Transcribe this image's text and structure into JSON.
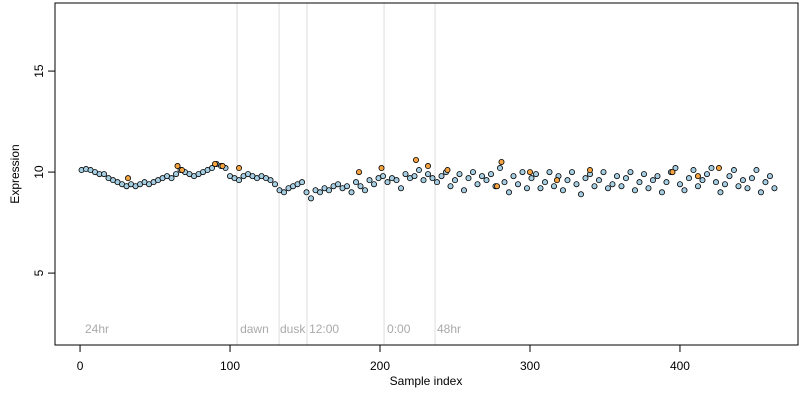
{
  "chart_data": {
    "type": "scatter",
    "xlabel": "Sample index",
    "ylabel": "Expression",
    "xlim": [
      -16.7,
      478.7
    ],
    "ylim": [
      1.44,
      18.37
    ],
    "xticks": [
      0,
      100,
      200,
      300,
      400
    ],
    "yticks": [
      5,
      10,
      15
    ],
    "vlines": [
      104.7,
      132.7,
      151.3,
      202.7,
      236.7
    ],
    "annotations": [
      {
        "text": "24hr",
        "x": 3.3
      },
      {
        "text": "dawn",
        "x": 106.7
      },
      {
        "text": "dusk",
        "x": 133.3
      },
      {
        "text": "12:00",
        "x": 152.7
      },
      {
        "text": "0:00",
        "x": 204.7
      },
      {
        "text": "48hr",
        "x": 238
      }
    ],
    "annotation_y": 2.2,
    "series": [
      {
        "color": "#a6cee3",
        "x": [
          1,
          4,
          7,
          10,
          13,
          16,
          19,
          22,
          25,
          28,
          31,
          34,
          37,
          40,
          43,
          46,
          49,
          52,
          55,
          58,
          61,
          64,
          67,
          70,
          73,
          76,
          79,
          82,
          85,
          88,
          91,
          94,
          97,
          100,
          103,
          106,
          109,
          112,
          115,
          118,
          121,
          124,
          127,
          130,
          133,
          136,
          139,
          142,
          145,
          148,
          151,
          154,
          157,
          160,
          163,
          166,
          169,
          172,
          175,
          178,
          181,
          184,
          187,
          190,
          193,
          196,
          199,
          202,
          205,
          208,
          211,
          214,
          217,
          220,
          223,
          226,
          229,
          232,
          235,
          238,
          241,
          244,
          247,
          250,
          253,
          256,
          259,
          262,
          265,
          268,
          271,
          274,
          277,
          280,
          283,
          286,
          289,
          292,
          295,
          298,
          301,
          304,
          307,
          310,
          313,
          316,
          319,
          322,
          325,
          328,
          331,
          334,
          337,
          340,
          343,
          346,
          349,
          352,
          355,
          358,
          361,
          364,
          367,
          370,
          373,
          376,
          379,
          382,
          385,
          388,
          391,
          394,
          397,
          400,
          403,
          406,
          409,
          412,
          415,
          418,
          421,
          424,
          427,
          430,
          433,
          436,
          439,
          442,
          445,
          448,
          451,
          454,
          457,
          460,
          463
        ],
        "values": [
          10.1,
          10.15,
          10.1,
          10.0,
          9.9,
          9.9,
          9.7,
          9.6,
          9.5,
          9.4,
          9.3,
          9.4,
          9.3,
          9.4,
          9.5,
          9.4,
          9.5,
          9.6,
          9.7,
          9.8,
          9.7,
          9.9,
          10.1,
          10.0,
          9.9,
          9.8,
          9.9,
          10.0,
          10.1,
          10.2,
          10.4,
          10.3,
          10.2,
          9.8,
          9.7,
          9.6,
          9.8,
          9.9,
          9.8,
          9.7,
          9.8,
          9.7,
          9.6,
          9.4,
          9.1,
          9.0,
          9.2,
          9.3,
          9.4,
          9.5,
          9.0,
          8.7,
          9.1,
          9.0,
          9.2,
          9.1,
          9.3,
          9.4,
          9.2,
          9.3,
          9.0,
          9.5,
          9.3,
          9.1,
          9.6,
          9.4,
          9.7,
          9.8,
          9.5,
          9.7,
          9.6,
          9.2,
          9.9,
          9.7,
          9.8,
          10.1,
          9.6,
          9.9,
          9.7,
          9.5,
          9.8,
          10.0,
          9.3,
          9.6,
          9.9,
          9.1,
          9.7,
          10.0,
          9.4,
          9.8,
          9.6,
          9.9,
          9.3,
          10.2,
          9.5,
          9.0,
          9.8,
          9.4,
          10.0,
          9.2,
          9.7,
          9.9,
          9.2,
          9.5,
          10.0,
          9.3,
          9.8,
          9.1,
          9.6,
          10.0,
          9.4,
          8.9,
          9.7,
          9.9,
          9.3,
          9.6,
          10.0,
          9.2,
          9.4,
          9.8,
          9.3,
          9.7,
          10.0,
          9.1,
          9.5,
          9.9,
          9.2,
          9.6,
          9.8,
          9.0,
          9.5,
          10.0,
          10.2,
          9.4,
          9.1,
          9.7,
          10.1,
          9.3,
          9.6,
          9.9,
          10.2,
          9.5,
          9.0,
          9.4,
          9.8,
          10.1,
          9.3,
          9.6,
          9.2,
          9.7,
          10.1,
          9.0,
          9.5,
          9.8,
          9.2
        ]
      },
      {
        "color": "#f5a340",
        "x": [
          32,
          65,
          68,
          90,
          95,
          106,
          186,
          201,
          224,
          232,
          245,
          278,
          281,
          300,
          318,
          340,
          395,
          412,
          426
        ],
        "values": [
          9.7,
          10.3,
          10.1,
          10.4,
          10.3,
          10.2,
          10.0,
          10.2,
          10.6,
          10.3,
          10.1,
          9.3,
          10.5,
          10.0,
          9.6,
          10.1,
          10.0,
          9.8,
          10.2
        ]
      }
    ]
  }
}
